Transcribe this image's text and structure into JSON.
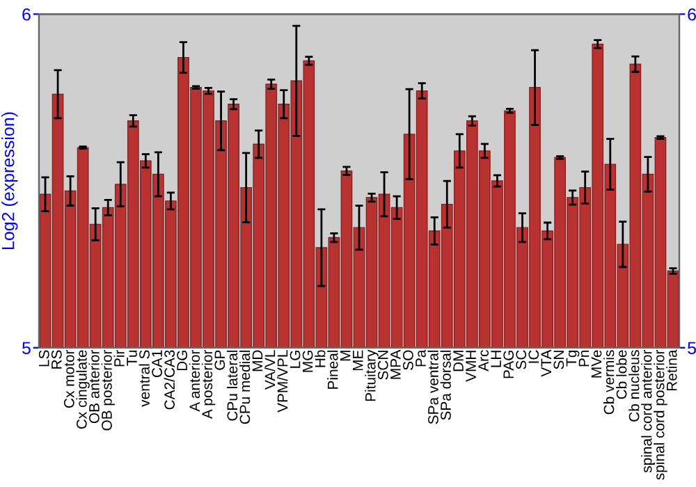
{
  "chart_data": {
    "type": "bar",
    "ylabel": "Log2 (expression)",
    "ylim": [
      5,
      6
    ],
    "yticks": [
      5,
      6
    ],
    "y2lim": [
      5,
      6
    ],
    "y2ticks": [
      5,
      6
    ],
    "grid": false,
    "legend": false,
    "categories": [
      "LS",
      "RS",
      "Cx motor",
      "Cx cingulate",
      "OB anterior",
      "OB posterior",
      "Pir",
      "Tu",
      "ventral S",
      "CA1",
      "CA2/CA3",
      "DG",
      "A anterior",
      "A posterior",
      "GP",
      "CPu lateral",
      "CPu medial",
      "MD",
      "VA/VL",
      "VPM/VPL",
      "LG",
      "MG",
      "Hb",
      "Pineal",
      "M",
      "ME",
      "Pituitary",
      "SCN",
      "MPA",
      "SO",
      "Pa",
      "SPa ventral",
      "SPa dorsal",
      "DM",
      "VMH",
      "Arc",
      "LH",
      "PAG",
      "SC",
      "IC",
      "VTA",
      "SN",
      "Tg",
      "Pn",
      "MVe",
      "Cb vermis",
      "Cb lobe",
      "Cb nucleus",
      "spinal cord anterior",
      "spinal cord posterior",
      "Retina"
    ],
    "series": [
      {
        "color": "#b83232",
        "values": [
          5.46,
          5.76,
          5.47,
          5.6,
          5.37,
          5.42,
          5.49,
          5.68,
          5.56,
          5.52,
          5.44,
          5.87,
          5.78,
          5.77,
          5.68,
          5.73,
          5.48,
          5.61,
          5.79,
          5.73,
          5.8,
          5.86,
          5.3,
          5.33,
          5.53,
          5.36,
          5.45,
          5.46,
          5.42,
          5.64,
          5.77,
          5.35,
          5.43,
          5.59,
          5.68,
          5.59,
          5.5,
          5.71,
          5.36,
          5.78,
          5.35,
          5.57,
          5.45,
          5.48,
          5.91,
          5.55,
          5.31,
          5.85,
          5.52,
          5.63,
          5.23
        ],
        "errors": [
          0.051,
          0.072,
          0.044,
          0.003,
          0.048,
          0.023,
          0.066,
          0.017,
          0.02,
          0.066,
          0.025,
          0.046,
          0.004,
          0.009,
          0.088,
          0.015,
          0.104,
          0.041,
          0.014,
          0.042,
          0.165,
          0.012,
          0.115,
          0.013,
          0.012,
          0.066,
          0.012,
          0.066,
          0.034,
          0.135,
          0.023,
          0.041,
          0.07,
          0.05,
          0.014,
          0.021,
          0.017,
          0.006,
          0.043,
          0.112,
          0.025,
          0.004,
          0.021,
          0.048,
          0.012,
          0.076,
          0.068,
          0.023,
          0.052,
          0.004,
          0.008
        ]
      }
    ]
  }
}
